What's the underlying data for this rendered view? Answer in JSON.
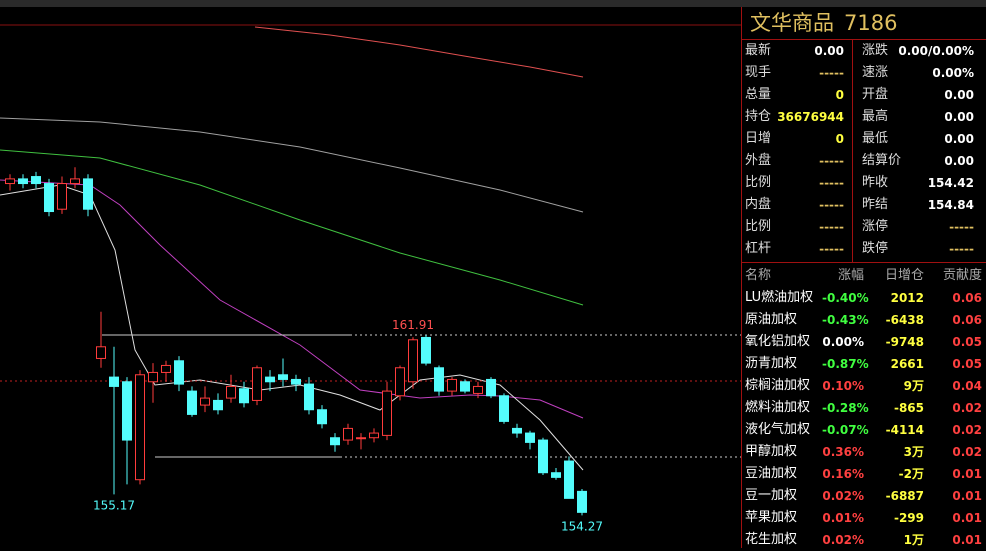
{
  "header": {
    "title": "文华商品",
    "code": "7186"
  },
  "quote": {
    "left": [
      [
        "最新",
        "0.00"
      ],
      [
        "现手",
        "-----"
      ],
      [
        "总量",
        "0"
      ],
      [
        "持仓",
        "36676944"
      ],
      [
        "日增",
        "0"
      ],
      [
        "外盘",
        "-----"
      ],
      [
        "比例",
        "-----"
      ],
      [
        "内盘",
        "-----"
      ],
      [
        "比例",
        "-----"
      ],
      [
        "杠杆",
        "-----"
      ]
    ],
    "right": [
      [
        "涨跌",
        "0.00/0.00%"
      ],
      [
        "速涨",
        "0.00%"
      ],
      [
        "开盘",
        "0.00"
      ],
      [
        "最高",
        "0.00"
      ],
      [
        "最低",
        "0.00"
      ],
      [
        "结算价",
        "0.00"
      ],
      [
        "昨收",
        "154.42"
      ],
      [
        "昨结",
        "154.84"
      ],
      [
        "涨停",
        "-----"
      ],
      [
        "跌停",
        "-----"
      ]
    ]
  },
  "table": {
    "columns": [
      "名称",
      "涨幅",
      "日增仓",
      "贡献度"
    ],
    "rows": [
      [
        "LU燃油加权",
        "-0.40%",
        "2012",
        "0.06"
      ],
      [
        "原油加权",
        "-0.43%",
        "-6438",
        "0.06"
      ],
      [
        "氧化铝加权",
        "0.00%",
        "-9748",
        "0.05"
      ],
      [
        "沥青加权",
        "-0.87%",
        "2661",
        "0.05"
      ],
      [
        "棕榈油加权",
        "0.10%",
        "9万",
        "0.04"
      ],
      [
        "燃料油加权",
        "-0.28%",
        "-865",
        "0.02"
      ],
      [
        "液化气加权",
        "-0.07%",
        "-4114",
        "0.02"
      ],
      [
        "甲醇加权",
        "0.36%",
        "3万",
        "0.02"
      ],
      [
        "豆油加权",
        "0.16%",
        "-2万",
        "0.01"
      ],
      [
        "豆一加权",
        "0.02%",
        "-6887",
        "0.01"
      ],
      [
        "苹果加权",
        "0.01%",
        "-299",
        "0.01"
      ],
      [
        "花生加权",
        "0.02%",
        "1万",
        "0.01"
      ]
    ]
  },
  "chart_data": {
    "type": "candlestick",
    "ylim": [
      153,
      176.5
    ],
    "candles": [
      {
        "open": 168.5,
        "high": 168.9,
        "low": 168.2,
        "close": 168.7
      },
      {
        "open": 168.7,
        "high": 168.9,
        "low": 168.3,
        "close": 168.5
      },
      {
        "open": 168.8,
        "high": 169.0,
        "low": 168.3,
        "close": 168.5
      },
      {
        "open": 168.5,
        "high": 168.7,
        "low": 167.1,
        "close": 167.3
      },
      {
        "open": 167.4,
        "high": 168.8,
        "low": 167.2,
        "close": 168.5
      },
      {
        "open": 168.5,
        "high": 169.2,
        "low": 168.3,
        "close": 168.7
      },
      {
        "open": 168.7,
        "high": 168.9,
        "low": 167.1,
        "close": 167.4
      },
      {
        "open": 161.0,
        "high": 163.0,
        "low": 160.6,
        "close": 161.5
      },
      {
        "open": 160.2,
        "high": 161.5,
        "low": 155.17,
        "close": 159.8
      },
      {
        "open": 160.0,
        "high": 160.2,
        "low": 155.6,
        "close": 157.5
      },
      {
        "open": 155.8,
        "high": 160.5,
        "low": 155.6,
        "close": 160.3
      },
      {
        "open": 160.0,
        "high": 160.8,
        "low": 159.1,
        "close": 160.4
      },
      {
        "open": 160.4,
        "high": 160.9,
        "low": 160.0,
        "close": 160.7
      },
      {
        "open": 160.9,
        "high": 161.1,
        "low": 159.6,
        "close": 159.9
      },
      {
        "open": 159.6,
        "high": 159.8,
        "low": 158.5,
        "close": 158.6
      },
      {
        "open": 159.0,
        "high": 159.8,
        "low": 158.7,
        "close": 159.3
      },
      {
        "open": 159.2,
        "high": 159.5,
        "low": 158.6,
        "close": 158.8
      },
      {
        "open": 159.3,
        "high": 160.3,
        "low": 159.1,
        "close": 159.8
      },
      {
        "open": 159.7,
        "high": 160.0,
        "low": 158.9,
        "close": 159.1
      },
      {
        "open": 159.2,
        "high": 160.7,
        "low": 159.0,
        "close": 160.6
      },
      {
        "open": 160.2,
        "high": 160.5,
        "low": 159.6,
        "close": 160.0
      },
      {
        "open": 160.3,
        "high": 161.0,
        "low": 159.8,
        "close": 160.1
      },
      {
        "open": 160.1,
        "high": 160.3,
        "low": 159.6,
        "close": 159.9
      },
      {
        "open": 159.9,
        "high": 160.2,
        "low": 158.6,
        "close": 158.8
      },
      {
        "open": 158.8,
        "high": 159.0,
        "low": 158.0,
        "close": 158.2
      },
      {
        "open": 157.6,
        "high": 157.8,
        "low": 157.0,
        "close": 157.3
      },
      {
        "open": 157.5,
        "high": 158.2,
        "low": 157.3,
        "close": 158.0
      },
      {
        "open": 157.6,
        "high": 157.8,
        "low": 157.1,
        "close": 157.6
      },
      {
        "open": 157.6,
        "high": 158.0,
        "low": 157.4,
        "close": 157.8
      },
      {
        "open": 157.7,
        "high": 160.0,
        "low": 157.5,
        "close": 159.6
      },
      {
        "open": 159.4,
        "high": 160.7,
        "low": 159.2,
        "close": 160.6
      },
      {
        "open": 160.0,
        "high": 161.91,
        "low": 159.7,
        "close": 161.8
      },
      {
        "open": 161.9,
        "high": 162.0,
        "low": 160.7,
        "close": 160.8
      },
      {
        "open": 160.6,
        "high": 160.7,
        "low": 159.4,
        "close": 159.6
      },
      {
        "open": 159.6,
        "high": 160.2,
        "low": 159.4,
        "close": 160.1
      },
      {
        "open": 160.0,
        "high": 160.1,
        "low": 159.5,
        "close": 159.6
      },
      {
        "open": 159.5,
        "high": 160.0,
        "low": 159.3,
        "close": 159.8
      },
      {
        "open": 160.1,
        "high": 160.2,
        "low": 159.3,
        "close": 159.4
      },
      {
        "open": 159.4,
        "high": 159.5,
        "low": 158.2,
        "close": 158.3
      },
      {
        "open": 158.0,
        "high": 158.2,
        "low": 157.6,
        "close": 157.8
      },
      {
        "open": 157.8,
        "high": 157.9,
        "low": 157.1,
        "close": 157.4
      },
      {
        "open": 157.5,
        "high": 157.6,
        "low": 156.0,
        "close": 156.1
      },
      {
        "open": 156.1,
        "high": 156.3,
        "low": 155.8,
        "close": 155.9
      },
      {
        "open": 156.6,
        "high": 156.8,
        "low": 155.0,
        "close": 155.0
      },
      {
        "open": 155.3,
        "high": 155.4,
        "low": 154.27,
        "close": 154.4
      }
    ]
  }
}
